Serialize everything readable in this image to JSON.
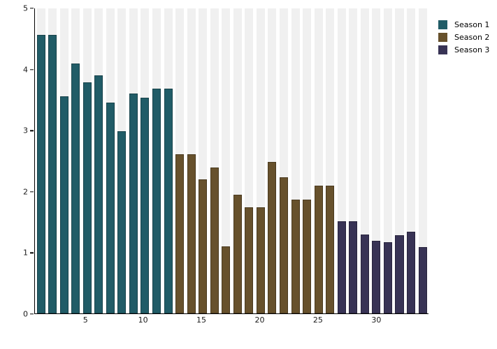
{
  "chart_data": {
    "type": "bar",
    "title": "",
    "xlabel": "",
    "ylabel": "",
    "x_start": 1,
    "x_end": 34,
    "ylim": [
      0,
      5
    ],
    "yticks": [
      0,
      1,
      2,
      3,
      4,
      5
    ],
    "xticks": [
      5,
      10,
      15,
      20,
      25,
      30
    ],
    "grid": "off",
    "background_band_color": "#f0f0f0",
    "axis_color": "#000000",
    "legend_position": "top-right-outside",
    "series": [
      {
        "name": "Season 1",
        "color": "#215c67",
        "values": [
          4.57,
          4.57,
          3.56,
          4.1,
          3.79,
          3.9,
          3.46,
          2.99,
          3.6,
          3.54,
          3.69,
          3.69
        ]
      },
      {
        "name": "Season 2",
        "color": "#67512c",
        "values": [
          2.61,
          2.61,
          2.2,
          2.39,
          1.1,
          1.95,
          1.74,
          1.74,
          2.48,
          2.23,
          1.87,
          1.87,
          2.09,
          2.09
        ]
      },
      {
        "name": "Season 3",
        "color": "#383355",
        "values": [
          1.51,
          1.51,
          1.29,
          1.19,
          1.17,
          1.28,
          1.34,
          1.09
        ]
      }
    ]
  },
  "legend": {
    "items": [
      {
        "label": "Season 1",
        "color": "#215c67"
      },
      {
        "label": "Season 2",
        "color": "#67512c"
      },
      {
        "label": "Season 3",
        "color": "#383355"
      }
    ]
  }
}
